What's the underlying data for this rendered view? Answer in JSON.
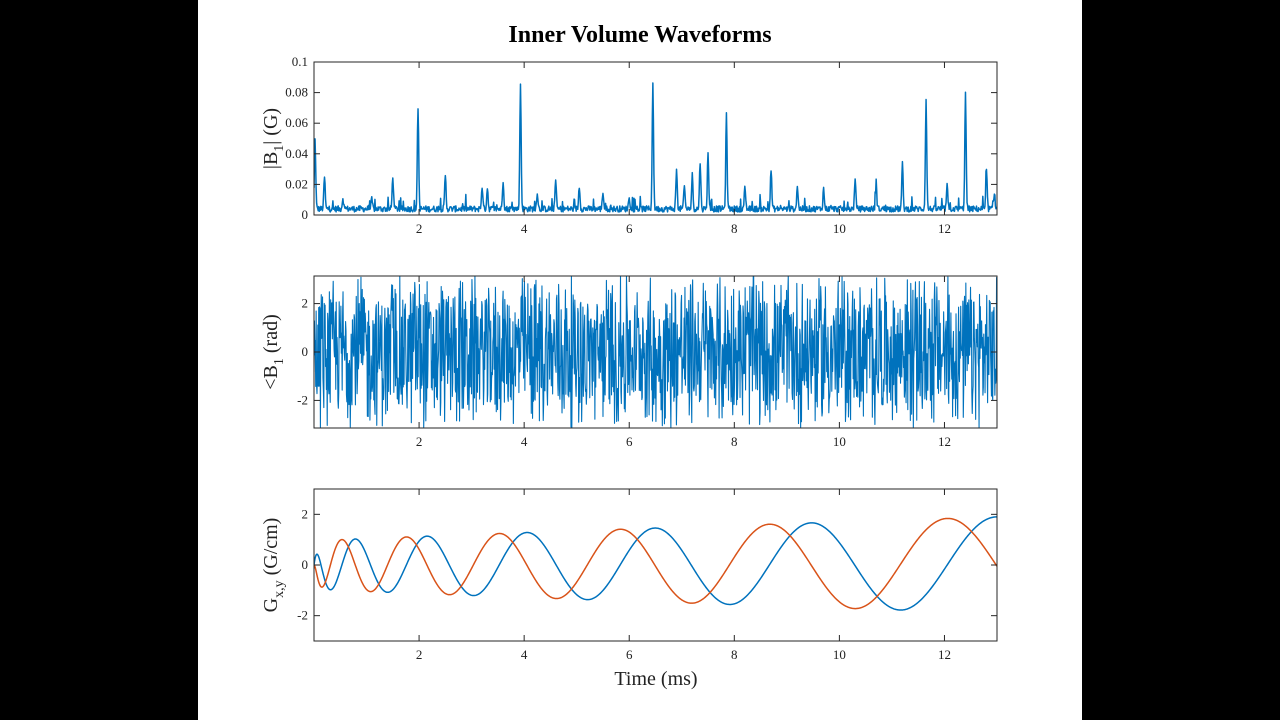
{
  "chart_data": {
    "type": "line",
    "title": "Inner Volume Waveforms",
    "xlabel": "Time (ms)",
    "xlim": [
      0,
      13
    ],
    "x_ticks": [
      2,
      4,
      6,
      8,
      10,
      12
    ],
    "grid": false,
    "colors": {
      "blue": "#0072BD",
      "orange": "#D95319"
    },
    "panels": [
      {
        "id": "magnitude",
        "ylabel": "|B1| (G)",
        "ylim": [
          0,
          0.1
        ],
        "y_ticks": [
          0,
          0.02,
          0.04,
          0.06,
          0.08,
          0.1
        ],
        "y_tick_labels": [
          "0",
          "0.02",
          "0.04",
          "0.06",
          "0.08",
          "0.1"
        ],
        "series": [
          {
            "color": "#0072BD",
            "peaks": [
              [
                0.02,
                0.048
              ],
              [
                0.2,
                0.024
              ],
              [
                0.55,
                0.01
              ],
              [
                1.1,
                0.009
              ],
              [
                1.5,
                0.024
              ],
              [
                1.98,
                0.07
              ],
              [
                2.5,
                0.025
              ],
              [
                3.2,
                0.018
              ],
              [
                3.3,
                0.017
              ],
              [
                3.6,
                0.022
              ],
              [
                3.93,
                0.084
              ],
              [
                4.25,
                0.014
              ],
              [
                4.6,
                0.022
              ],
              [
                5.05,
                0.018
              ],
              [
                5.5,
                0.014
              ],
              [
                6.0,
                0.011
              ],
              [
                6.45,
                0.085
              ],
              [
                6.9,
                0.028
              ],
              [
                7.05,
                0.018
              ],
              [
                7.2,
                0.025
              ],
              [
                7.35,
                0.034
              ],
              [
                7.5,
                0.04
              ],
              [
                7.85,
                0.064
              ],
              [
                8.2,
                0.016
              ],
              [
                8.7,
                0.029
              ],
              [
                9.2,
                0.018
              ],
              [
                9.7,
                0.016
              ],
              [
                10.3,
                0.022
              ],
              [
                10.7,
                0.018
              ],
              [
                11.2,
                0.032
              ],
              [
                11.65,
                0.074
              ],
              [
                12.05,
                0.018
              ],
              [
                12.4,
                0.078
              ],
              [
                12.8,
                0.027
              ],
              [
                12.95,
                0.014
              ]
            ]
          }
        ]
      },
      {
        "id": "phase",
        "ylabel": "<B1 (rad)",
        "ylim": [
          -3.14,
          3.14
        ],
        "y_ticks": [
          -2,
          0,
          2
        ],
        "y_tick_labels": [
          "-2",
          "0",
          "2"
        ],
        "series": [
          {
            "color": "#0072BD",
            "kind": "wrapped-phase",
            "range": [
              -3.14,
              3.14
            ]
          }
        ]
      },
      {
        "id": "gradient",
        "ylabel": "Gx,y (G/cm)",
        "ylim": [
          -3,
          3
        ],
        "y_ticks": [
          -2,
          0,
          2
        ],
        "y_tick_labels": [
          "-2",
          "0",
          "2"
        ],
        "series": [
          {
            "color": "#0072BD",
            "kind": "spiral-cos",
            "amp_start": 0.95,
            "amp_end": 1.9,
            "period_start": 0.35,
            "period_end": 3.8
          },
          {
            "color": "#D95319",
            "kind": "spiral-sin",
            "amp_start": 0.95,
            "amp_end": 1.9,
            "period_start": 0.35,
            "period_end": 3.8
          }
        ]
      }
    ]
  }
}
